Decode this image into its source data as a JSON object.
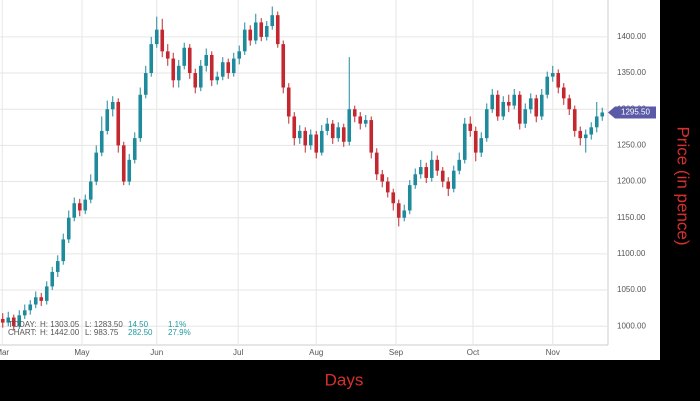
{
  "chart_data": {
    "type": "candlestick",
    "x_label": "Days",
    "y_label": "Price (in pence)",
    "up_color": "#1f8a9b",
    "down_color": "#c3272f",
    "axis_title_color": "#d6302d",
    "grid": true,
    "xlim": [
      -0.5,
      109.5
    ],
    "xticks": [
      {
        "value": -0.1,
        "label": "Mar"
      },
      {
        "value": 14.4,
        "label": "May"
      },
      {
        "value": 28,
        "label": "Jun"
      },
      {
        "value": 42.8,
        "label": "Jul"
      },
      {
        "value": 57,
        "label": "Aug"
      },
      {
        "value": 71.5,
        "label": "Sep"
      },
      {
        "value": 85.5,
        "label": "Oct"
      },
      {
        "value": 100,
        "label": "Nov"
      }
    ],
    "ylim": [
      974,
      1451
    ],
    "yticks": [
      {
        "value": 1000,
        "label": "1000.00"
      },
      {
        "value": 1050,
        "label": "1050.00"
      },
      {
        "value": 1100,
        "label": "1100.00"
      },
      {
        "value": 1150,
        "label": "1150.00"
      },
      {
        "value": 1200,
        "label": "1200.00"
      },
      {
        "value": 1250,
        "label": "1250.00"
      },
      {
        "value": 1300,
        "label": "1300.00"
      },
      {
        "value": 1350,
        "label": "1350.00"
      },
      {
        "value": 1400,
        "label": "1400.00"
      }
    ],
    "last_price": {
      "value": 1295.5,
      "label": "1295.50",
      "color": "#5b5aa8"
    },
    "open": [
      1010,
      1005,
      1012,
      1000,
      1015,
      1022,
      1030,
      1040,
      1035,
      1055,
      1075,
      1090,
      1120,
      1150,
      1170,
      1160,
      1175,
      1200,
      1240,
      1270,
      1300,
      1310,
      1250,
      1200,
      1230,
      1260,
      1320,
      1350,
      1390,
      1410,
      1380,
      1370,
      1340,
      1360,
      1385,
      1350,
      1330,
      1360,
      1375,
      1340,
      1345,
      1365,
      1350,
      1370,
      1380,
      1410,
      1395,
      1420,
      1400,
      1415,
      1430,
      1390,
      1330,
      1290,
      1260,
      1270,
      1250,
      1265,
      1240,
      1270,
      1280,
      1260,
      1275,
      1255,
      1300,
      1290,
      1280,
      1285,
      1240,
      1210,
      1200,
      1185,
      1170,
      1150,
      1160,
      1195,
      1210,
      1220,
      1205,
      1230,
      1215,
      1200,
      1190,
      1215,
      1230,
      1280,
      1270,
      1240,
      1260,
      1300,
      1320,
      1290,
      1310,
      1305,
      1320,
      1280,
      1300,
      1315,
      1290,
      1320,
      1345,
      1350,
      1330,
      1315,
      1300,
      1270,
      1260,
      1265,
      1275,
      1290
    ],
    "high": [
      1018,
      1020,
      1016,
      1022,
      1030,
      1036,
      1048,
      1046,
      1062,
      1082,
      1098,
      1128,
      1160,
      1178,
      1176,
      1182,
      1210,
      1250,
      1290,
      1312,
      1318,
      1315,
      1255,
      1238,
      1268,
      1330,
      1360,
      1400,
      1428,
      1425,
      1390,
      1378,
      1368,
      1392,
      1390,
      1356,
      1368,
      1384,
      1380,
      1352,
      1372,
      1370,
      1378,
      1388,
      1420,
      1416,
      1432,
      1426,
      1422,
      1442,
      1435,
      1395,
      1336,
      1296,
      1278,
      1275,
      1272,
      1270,
      1278,
      1288,
      1285,
      1282,
      1280,
      1372,
      1305,
      1296,
      1292,
      1290,
      1246,
      1216,
      1206,
      1190,
      1175,
      1168,
      1202,
      1218,
      1230,
      1226,
      1242,
      1236,
      1220,
      1206,
      1222,
      1240,
      1288,
      1290,
      1276,
      1268,
      1308,
      1328,
      1326,
      1318,
      1320,
      1328,
      1325,
      1308,
      1322,
      1320,
      1328,
      1352,
      1360,
      1355,
      1336,
      1320,
      1305,
      1276,
      1272,
      1282,
      1310,
      1302
    ],
    "low": [
      998,
      1000,
      994,
      996,
      1010,
      1016,
      1025,
      1028,
      1030,
      1050,
      1068,
      1085,
      1115,
      1145,
      1152,
      1155,
      1170,
      1195,
      1235,
      1265,
      1290,
      1240,
      1195,
      1195,
      1225,
      1255,
      1315,
      1345,
      1385,
      1372,
      1360,
      1330,
      1330,
      1355,
      1342,
      1322,
      1325,
      1352,
      1332,
      1334,
      1340,
      1342,
      1345,
      1362,
      1375,
      1388,
      1390,
      1394,
      1395,
      1410,
      1385,
      1322,
      1280,
      1250,
      1252,
      1240,
      1244,
      1232,
      1236,
      1264,
      1252,
      1255,
      1248,
      1250,
      1282,
      1272,
      1275,
      1232,
      1202,
      1192,
      1178,
      1160,
      1138,
      1145,
      1155,
      1190,
      1204,
      1198,
      1200,
      1208,
      1192,
      1180,
      1185,
      1210,
      1225,
      1262,
      1228,
      1234,
      1255,
      1295,
      1284,
      1285,
      1296,
      1300,
      1272,
      1274,
      1294,
      1282,
      1285,
      1315,
      1338,
      1322,
      1306,
      1292,
      1262,
      1250,
      1240,
      1258,
      1268,
      1284
    ],
    "close": [
      1005,
      1012,
      1000,
      1015,
      1022,
      1030,
      1040,
      1035,
      1055,
      1075,
      1090,
      1120,
      1150,
      1170,
      1160,
      1175,
      1200,
      1240,
      1270,
      1300,
      1310,
      1250,
      1200,
      1230,
      1260,
      1320,
      1350,
      1390,
      1410,
      1380,
      1370,
      1340,
      1360,
      1385,
      1350,
      1330,
      1360,
      1375,
      1340,
      1345,
      1365,
      1350,
      1370,
      1380,
      1410,
      1395,
      1420,
      1400,
      1415,
      1430,
      1390,
      1330,
      1290,
      1260,
      1270,
      1250,
      1265,
      1240,
      1270,
      1280,
      1260,
      1275,
      1255,
      1300,
      1290,
      1280,
      1285,
      1240,
      1210,
      1200,
      1185,
      1170,
      1150,
      1160,
      1195,
      1210,
      1220,
      1205,
      1230,
      1215,
      1200,
      1190,
      1215,
      1230,
      1280,
      1270,
      1240,
      1260,
      1300,
      1320,
      1290,
      1310,
      1305,
      1320,
      1280,
      1300,
      1315,
      1290,
      1320,
      1345,
      1350,
      1330,
      1315,
      1300,
      1270,
      1260,
      1265,
      1275,
      1290,
      1295.5
    ],
    "info": {
      "today": {
        "label": "TODAY:",
        "high": "H: 1303.05",
        "low": "L: 1283.50",
        "change": "14.50",
        "percent": "1.1%"
      },
      "chart": {
        "label": "CHART:",
        "high": "H: 1442.00",
        "low": "L: 983.75",
        "change": "282.50",
        "percent": "27.9%"
      },
      "change_color": "#1f9aa0"
    }
  }
}
